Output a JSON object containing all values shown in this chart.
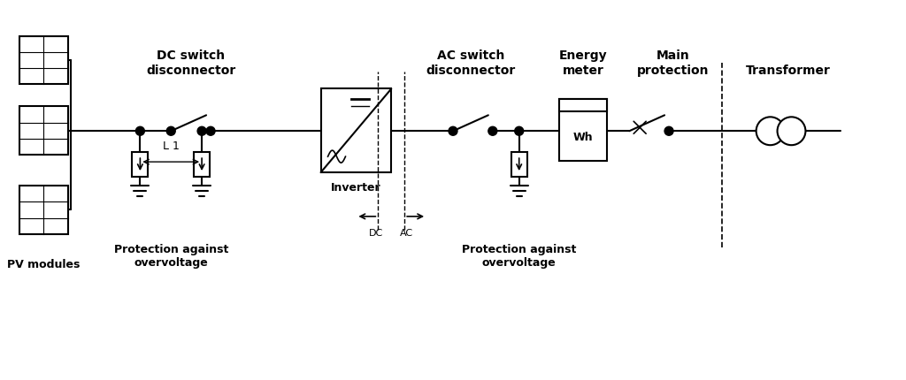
{
  "bg_color": "#ffffff",
  "line_color": "#000000",
  "figsize": [
    10.24,
    4.31
  ],
  "dpi": 100,
  "labels": {
    "pv_modules": "PV modules",
    "dc_switch": "DC switch\ndisconnector",
    "protection1": "Protection against\novervoltage",
    "inverter": "Inverter",
    "dc_ac": "DC",
    "ac_label": "AC",
    "ac_switch": "AC switch\ndisconnector",
    "energy_meter": "Energy\nmeter",
    "wh": "Wh",
    "main_protection": "Main\nprotection",
    "transformer": "Transformer",
    "protection2": "Protection against\novervoltage",
    "L1": "L 1"
  }
}
